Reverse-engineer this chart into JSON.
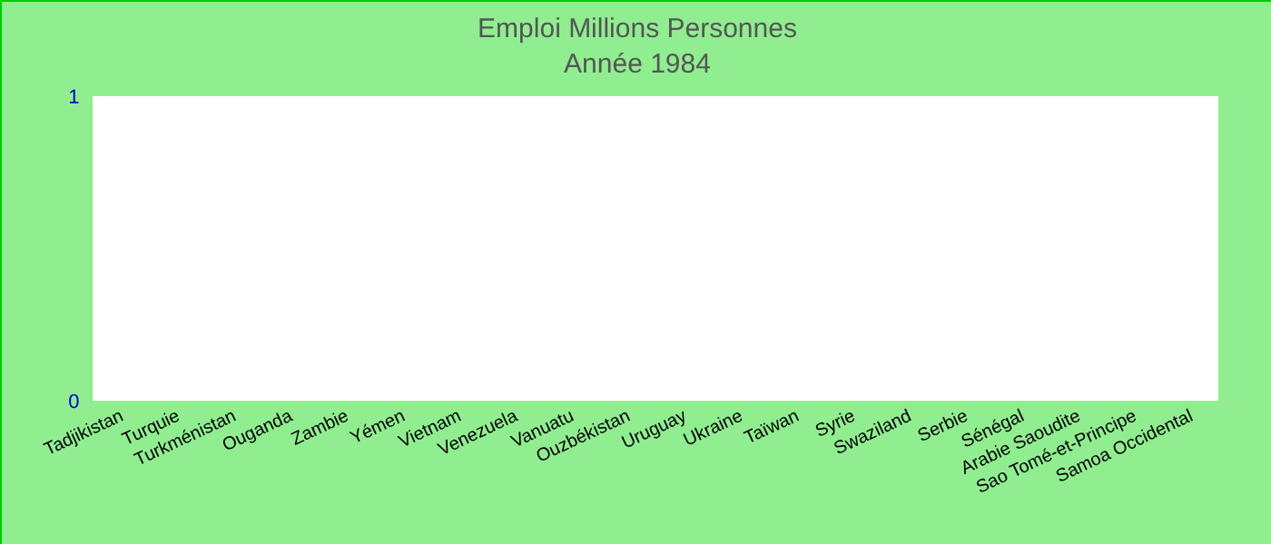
{
  "chart_data": {
    "type": "bar",
    "title": "Emploi Millions Personnes",
    "subtitle": "Année 1984",
    "categories": [
      "Tadjikistan",
      "Turquie",
      "Turkménistan",
      "Ouganda",
      "Zambie",
      "Yémen",
      "Vietnam",
      "Venezuela",
      "Vanuatu",
      "Ouzbékistan",
      "Uruguay",
      "Ukraine",
      "Taïwan",
      "Syrie",
      "Swaziland",
      "Serbie",
      "Sénégal",
      "Arabie Saoudite",
      "Sao Tomé-et-Principe",
      "Samoa Occidental"
    ],
    "values": [
      0,
      0,
      0,
      0,
      0,
      0,
      0,
      0,
      0,
      0,
      0,
      0,
      0,
      0,
      0,
      0,
      0,
      0,
      0,
      0
    ],
    "ylim": [
      0,
      1
    ],
    "yticks": [
      0,
      1
    ]
  }
}
